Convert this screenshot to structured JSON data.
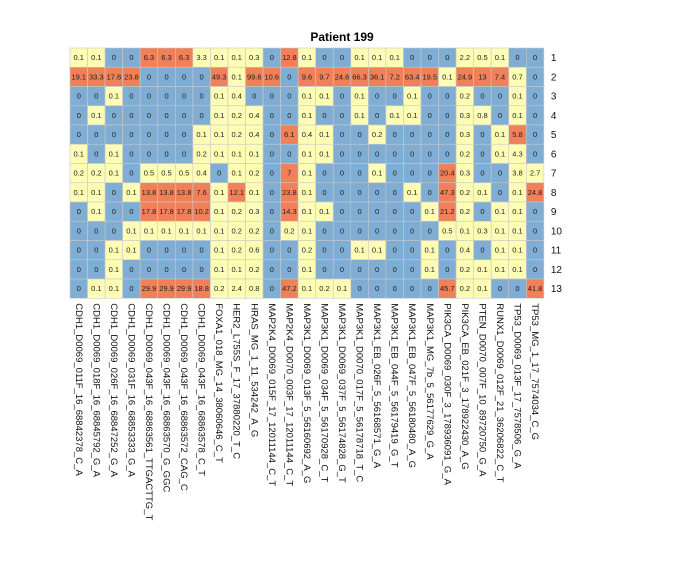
{
  "chart_data": {
    "type": "heatmap",
    "title": "Patient 199",
    "rows": [
      "1",
      "2",
      "3",
      "4",
      "5",
      "6",
      "7",
      "8",
      "9",
      "10",
      "11",
      "12",
      "13"
    ],
    "columns": [
      "CDH1_D0069_011F_16_68842378_C_A",
      "CDH1_D0069_018F_16_68845792_G_A",
      "CDH1_D0069_026F_16_68847252_G_A",
      "CDH1_D0069_031F_16_68853333_G_A",
      "CDH1_D0069_043F_16_68863561_TTGACTTG_T",
      "CDH1_D0069_043F_16_68863570_G_GGC",
      "CDH1_D0069_043F_16_68863572_CAG_C",
      "CDH1_D0069_043F_16_68863578_C_T",
      "FOXA1_018_MG_14_38060646_C_T",
      "HER2_L755S_F_17_37880220_T_C",
      "HRAS_MG_1_11_534242_A_G",
      "MAP2K4_D0069_015F_17_12011144_C_T",
      "MAP2K4_D0070_003F_17_12011144_C_T",
      "MAP3K1_D0069_013F_5_56160692_A_G",
      "MAP3K1_D0069_034F_5_56170928_C_T",
      "MAP3K1_D0069_037F_5_56174828_G_T",
      "MAP3K1_D0070_017F_5_56178718_T_C",
      "MAP3K1_EB_026F_5_56168571_G_A",
      "MAP3K1_EB_044F_5_56179419_G_T",
      "MAP3K1_EB_047F_5_56180480_A_G",
      "MAP3K1_MG_7b_5_56177629_G_A",
      "PIK3CA_D0069_030F_3_178936091_G_A",
      "PIK3CA_EB_021F_3_178922430_A_G",
      "PTEN_D0070_007F_10_89720750_G_A",
      "RUNX1_D0069_012F_21_36206822_C_T",
      "TP53_D0069_013F_17_7578506_G_A",
      "TP53_MG_1_17_7574034_C_G"
    ],
    "values": [
      [
        0.1,
        0.1,
        0,
        0,
        6.3,
        6.3,
        6.3,
        3.3,
        0.1,
        0.1,
        0.3,
        0,
        12.8,
        0.1,
        0,
        0,
        0.1,
        0.1,
        0.1,
        0,
        0,
        0,
        2.2,
        0.5,
        0.1,
        0,
        0
      ],
      [
        19.1,
        33.3,
        17.8,
        23.8,
        0,
        0,
        0,
        0,
        49.3,
        0.1,
        99.6,
        10.6,
        0,
        9.6,
        9.7,
        24.6,
        66.3,
        36.1,
        7.2,
        63.4,
        19.5,
        0.1,
        24.9,
        13,
        7.4,
        0.7,
        0
      ],
      [
        0,
        0,
        0.1,
        0,
        0,
        0,
        0,
        0,
        0.1,
        0.4,
        0,
        0,
        0,
        0.1,
        0.1,
        0,
        0.1,
        0,
        0,
        0.1,
        0,
        0,
        0.2,
        0,
        0,
        0.1,
        0
      ],
      [
        0,
        0.1,
        0,
        0,
        0,
        0,
        0,
        0,
        0.1,
        0.2,
        0.4,
        0,
        0,
        0.1,
        0,
        0,
        0.1,
        0,
        0.1,
        0.1,
        0,
        0,
        0.3,
        0.8,
        0,
        0.1,
        0
      ],
      [
        0,
        0,
        0,
        0,
        0,
        0,
        0,
        0.1,
        0.1,
        0.2,
        0.4,
        0,
        6.1,
        0.4,
        0.1,
        0,
        0,
        0.2,
        0,
        0,
        0,
        0,
        0.3,
        0,
        0.1,
        5.8,
        0
      ],
      [
        0.1,
        0,
        0.1,
        0,
        0,
        0,
        0,
        0.2,
        0.1,
        0.1,
        0.1,
        0,
        0,
        0.1,
        0.1,
        0,
        0,
        0,
        0,
        0,
        0,
        0,
        0.2,
        0,
        0.1,
        4.3,
        0
      ],
      [
        0.2,
        0.2,
        0.1,
        0,
        0.5,
        0.5,
        0.5,
        0.4,
        0,
        0.1,
        0.2,
        0,
        7,
        0.1,
        0,
        0,
        0,
        0.1,
        0,
        0,
        0,
        20.4,
        0.3,
        0,
        0,
        3.8,
        2.7
      ],
      [
        0.1,
        0.1,
        0,
        0.1,
        13.8,
        13.8,
        13.8,
        7.6,
        0.1,
        12.1,
        0.1,
        0,
        23.8,
        0.1,
        0,
        0,
        0,
        0,
        0,
        0.1,
        0,
        47.3,
        0.2,
        0.1,
        0,
        0.1,
        24.8
      ],
      [
        0,
        0.1,
        0,
        0,
        17.8,
        17.8,
        17.8,
        10.2,
        0.1,
        0.2,
        0.3,
        0,
        14.3,
        0.1,
        0.1,
        0,
        0,
        0,
        0,
        0,
        0.1,
        21.2,
        0.2,
        0,
        0.1,
        0.1,
        0
      ],
      [
        0,
        0,
        0,
        0.1,
        0.1,
        0.1,
        0.1,
        0.1,
        0.1,
        0.2,
        0.2,
        0,
        0.2,
        0.1,
        0,
        0,
        0,
        0,
        0,
        0,
        0,
        0.5,
        0.1,
        0.3,
        0.1,
        0.1,
        0
      ],
      [
        0,
        0,
        0.1,
        0.1,
        0,
        0,
        0,
        0,
        0.1,
        0.2,
        0.6,
        0,
        0,
        0.2,
        0,
        0,
        0.1,
        0.1,
        0,
        0,
        0.1,
        0,
        0.4,
        0,
        0.1,
        0.1,
        0
      ],
      [
        0,
        0,
        0.1,
        0,
        0,
        0,
        0,
        0,
        0.1,
        0.1,
        0.2,
        0,
        0,
        0.1,
        0,
        0,
        0,
        0,
        0,
        0,
        0.1,
        0,
        0.2,
        0.1,
        0.1,
        0.1,
        0
      ],
      [
        0,
        0.1,
        0.1,
        0,
        29.9,
        29.9,
        29.9,
        18.8,
        0.2,
        2.4,
        0.8,
        0,
        47.2,
        0.1,
        0.2,
        0.1,
        0,
        0,
        0,
        0,
        0,
        45.7,
        0.2,
        0.1,
        0,
        0,
        41.8
      ]
    ],
    "color_scale": {
      "zero_color": "#7fadd4",
      "low_color": "#fdfdb5",
      "high_color": "#f08059",
      "low_threshold": 0,
      "high_threshold": 5
    },
    "grid": true
  }
}
